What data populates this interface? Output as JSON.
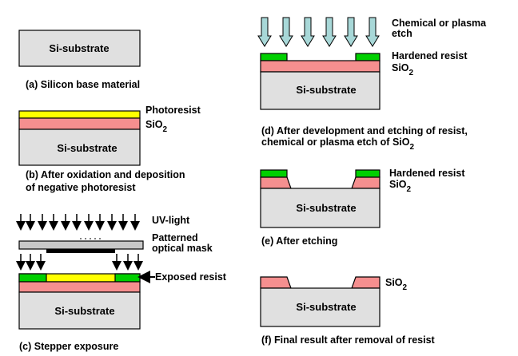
{
  "colors": {
    "substrate": "#e0e0e0",
    "oxide": "#f58f8f",
    "photoresist": "#ffff00",
    "hardened_resist": "#00d000",
    "mask": "#c8c8c8",
    "arrow_fill": "#a8d8d8"
  },
  "substrate_label": "Si-substrate",
  "panels": {
    "a": {
      "caption": "(a) Silicon base material"
    },
    "b": {
      "caption_line1": "(b) After oxidation and deposition",
      "caption_line2": "of negative photoresist",
      "photoresist_label": "Photoresist",
      "oxide_label_main": "SiO",
      "oxide_label_sub": "2"
    },
    "c": {
      "caption": "(c) Stepper exposure",
      "uv_label": "UV-light",
      "mask_label_line1": "Patterned",
      "mask_label_line2": "optical mask",
      "exposed_label": "Exposed resist"
    },
    "d": {
      "etch_label_line1": "Chemical or plasma",
      "etch_label_line2": "etch",
      "hardened_label": "Hardened resist",
      "oxide_label_main": "SiO",
      "oxide_label_sub": "2",
      "caption_line1": "(d) After development and etching of resist,",
      "caption_line2_main": "chemical or plasma etch of SiO",
      "caption_line2_sub": "2"
    },
    "e": {
      "hardened_label": "Hardened resist",
      "oxide_label_main": "SiO",
      "oxide_label_sub": "2",
      "caption": "(e) After etching"
    },
    "f": {
      "oxide_label_main": "SiO",
      "oxide_label_sub": "2",
      "caption": "(f) Final result after removal of resist"
    }
  }
}
